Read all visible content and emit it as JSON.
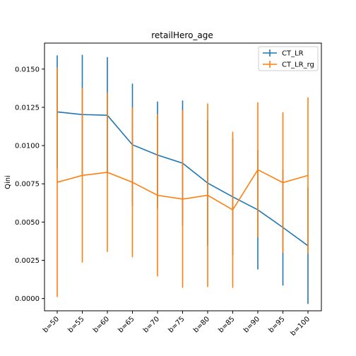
{
  "chart_data": {
    "type": "line",
    "title": "retailHero_age",
    "xlabel": "",
    "ylabel": "Qini",
    "categories": [
      "b=50",
      "b=55",
      "b=60",
      "b=65",
      "b=70",
      "b=75",
      "b=80",
      "b=85",
      "b=90",
      "b=95",
      "b=100"
    ],
    "ylim": [
      -0.0008,
      0.0167
    ],
    "yticks": [
      0.0,
      0.0025,
      0.005,
      0.0075,
      0.01,
      0.0125,
      0.015
    ],
    "ytick_labels": [
      "0.0000",
      "0.0025",
      "0.0050",
      "0.0075",
      "0.0100",
      "0.0125",
      "0.0150"
    ],
    "grid": false,
    "legend_position": "top-right",
    "series": [
      {
        "name": "CT_LR",
        "color": "#1f77b4",
        "values": [
          0.0122,
          0.01203,
          0.01198,
          0.01005,
          0.00938,
          0.00885,
          0.00755,
          0.00665,
          0.0058,
          0.00465,
          0.00345
        ],
        "error": [
          0.0037,
          0.0039,
          0.0038,
          0.004,
          0.0035,
          0.0041,
          0.0041,
          0.0038,
          0.0039,
          0.0038,
          0.0038
        ]
      },
      {
        "name": "CT_LR_rg",
        "color": "#ff7f0e",
        "values": [
          0.0076,
          0.00805,
          0.00825,
          0.0076,
          0.00675,
          0.0065,
          0.00675,
          0.0058,
          0.00842,
          0.00758,
          0.00805
        ],
        "error": [
          0.0075,
          0.0057,
          0.0052,
          0.0049,
          0.0053,
          0.0058,
          0.006,
          0.0051,
          0.0044,
          0.0046,
          0.0051
        ]
      }
    ]
  }
}
